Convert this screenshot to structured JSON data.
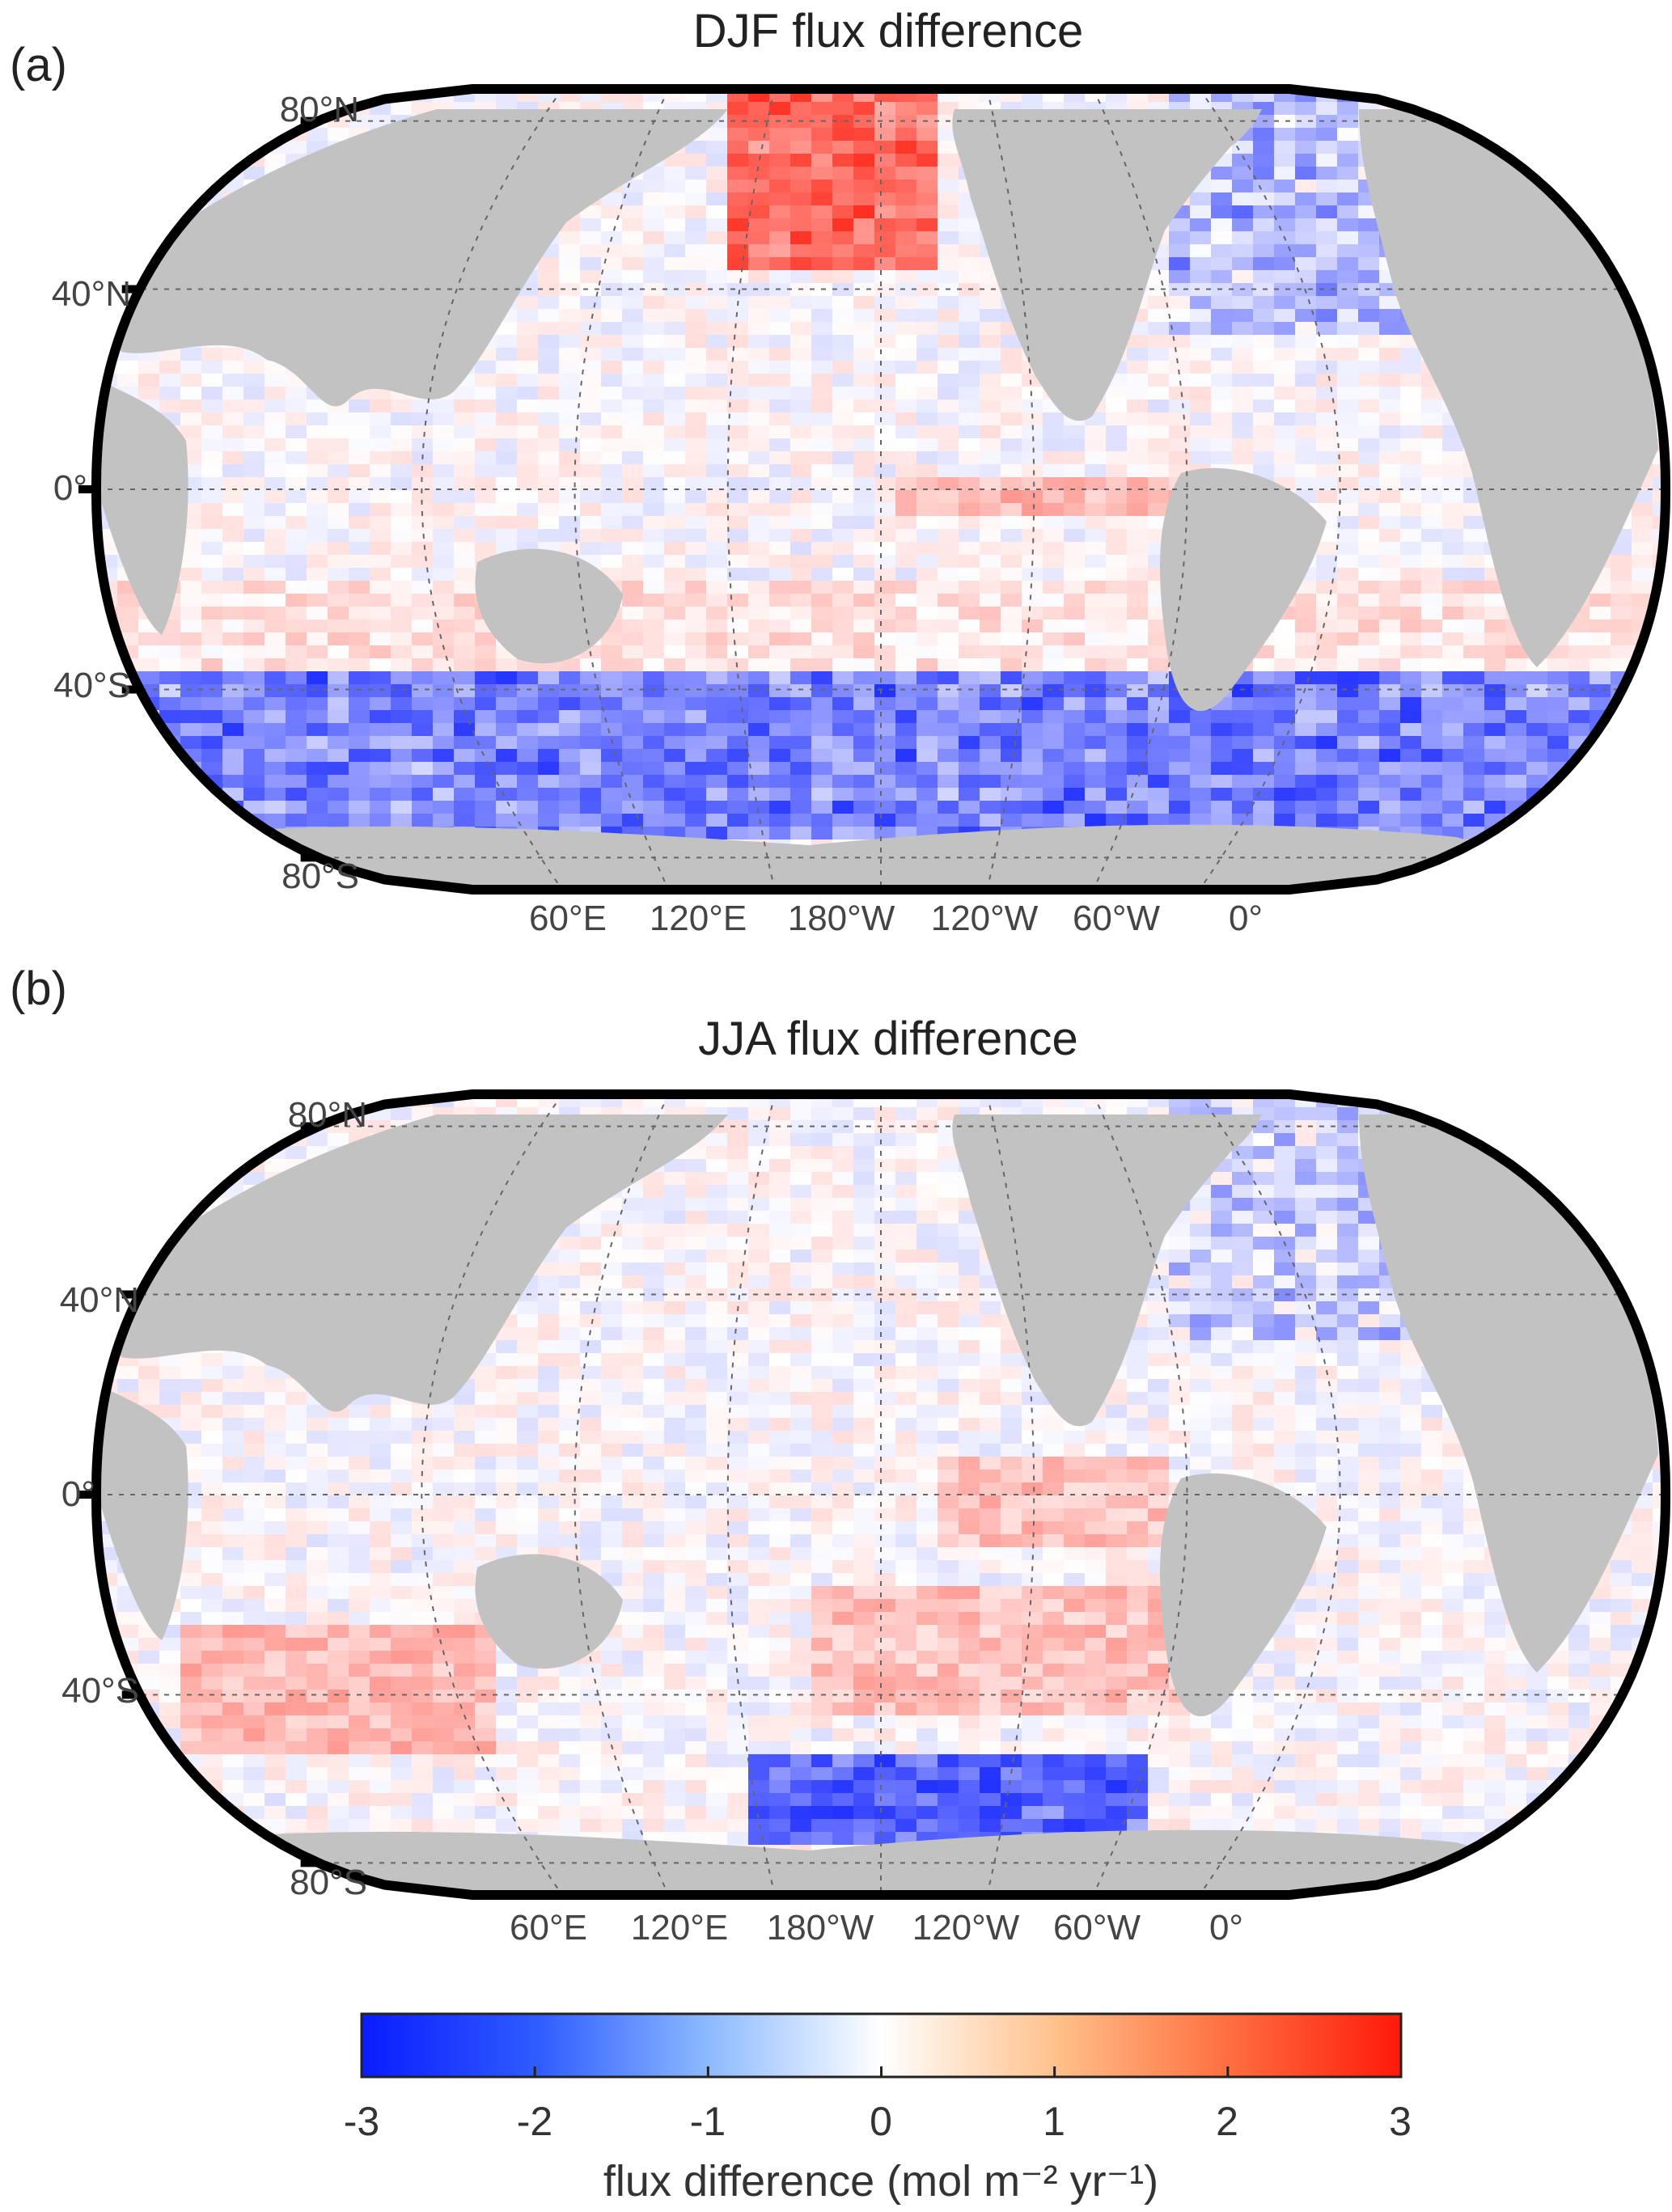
{
  "panels": [
    {
      "label": "(a)",
      "title": "DJF flux difference",
      "lat_labels": [
        "80°N",
        "40°N",
        "0°",
        "40°S",
        "80°S"
      ],
      "lon_labels": [
        "60°E",
        "120°E",
        "180°W",
        "120°W",
        "60°W",
        "0°"
      ]
    },
    {
      "label": "(b)",
      "title": "JJA flux difference",
      "lat_labels": [
        "80°N",
        "40°N",
        "0°",
        "40°S",
        "80°S"
      ],
      "lon_labels": [
        "60°E",
        "120°E",
        "180°W",
        "120°W",
        "60°W",
        "0°"
      ]
    }
  ],
  "colorbar": {
    "min": -3,
    "max": 3,
    "ticks": [
      "-3",
      "-2",
      "-1",
      "0",
      "1",
      "2",
      "3"
    ],
    "label": "flux difference (mol m⁻² yr⁻¹)",
    "colors": [
      "#0a1cff",
      "#ffffff",
      "#ff1a0a"
    ]
  },
  "colors": {
    "land": "#c2c2c2",
    "frame": "#000000",
    "ocean_neutral": "#ffffff"
  }
}
